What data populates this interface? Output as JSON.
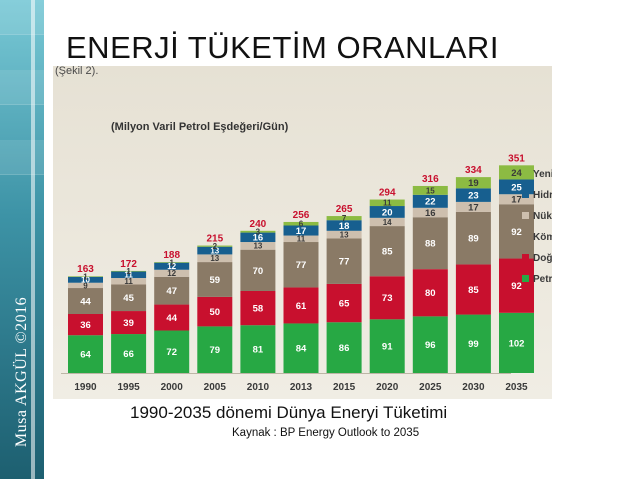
{
  "slide": {
    "title": "ENERJİ TÜKETİM ORANLARI",
    "sidebar_author": "Musa AKGÜL ©2016",
    "caption": "1990-2035 dönemi Dünya Eneryi Tüketimi",
    "source": "Kaynak : BP Energy Outlook to 2035"
  },
  "chart_data": {
    "type": "bar",
    "stacked": true,
    "header_text": "(Şekil 2).",
    "unit_label": "(Milyon Varil Petrol Eşdeğeri/Gün)",
    "categories": [
      "1990",
      "1995",
      "2000",
      "2005",
      "2010",
      "2013",
      "2015",
      "2020",
      "2025",
      "2030",
      "2035"
    ],
    "series": [
      {
        "name": "Petrol",
        "color": "#27a844",
        "label_color": "#ffffff",
        "values": [
          64,
          66,
          72,
          79,
          81,
          84,
          86,
          91,
          96,
          99,
          102
        ]
      },
      {
        "name": "Doğal Gaz",
        "color": "#c8102e",
        "label_color": "#ffffff",
        "values": [
          36,
          39,
          44,
          50,
          58,
          61,
          65,
          73,
          80,
          85,
          92
        ]
      },
      {
        "name": "Kömür",
        "color": "#8a7a66",
        "label_color": "#ffffff",
        "values": [
          44,
          45,
          47,
          59,
          70,
          77,
          77,
          85,
          88,
          89,
          92
        ]
      },
      {
        "name": "Nükleer",
        "color": "#cdbfae",
        "label_color": "#3a3a3a",
        "values": [
          9,
          11,
          12,
          13,
          13,
          11,
          13,
          14,
          16,
          17,
          17
        ]
      },
      {
        "name": "Hidro",
        "color": "#175f8f",
        "label_color": "#ffffff",
        "values": [
          10,
          11,
          12,
          13,
          16,
          17,
          18,
          20,
          22,
          23,
          25
        ]
      },
      {
        "name": "Yenilenebilir",
        "color": "#8cbb43",
        "label_color": "#3a3a3a",
        "values": [
          1,
          1,
          1,
          2,
          3,
          6,
          7,
          11,
          15,
          19,
          24
        ]
      }
    ],
    "totals": [
      163,
      172,
      188,
      215,
      240,
      256,
      265,
      294,
      316,
      334,
      351
    ],
    "ylim": [
      0,
      360
    ],
    "grid": false,
    "legend_position": "right",
    "legend_order": [
      "Yenilenebilir",
      "Hidro",
      "Nükleer",
      "Kömür",
      "Doğal Gaz",
      "Petrol"
    ]
  }
}
